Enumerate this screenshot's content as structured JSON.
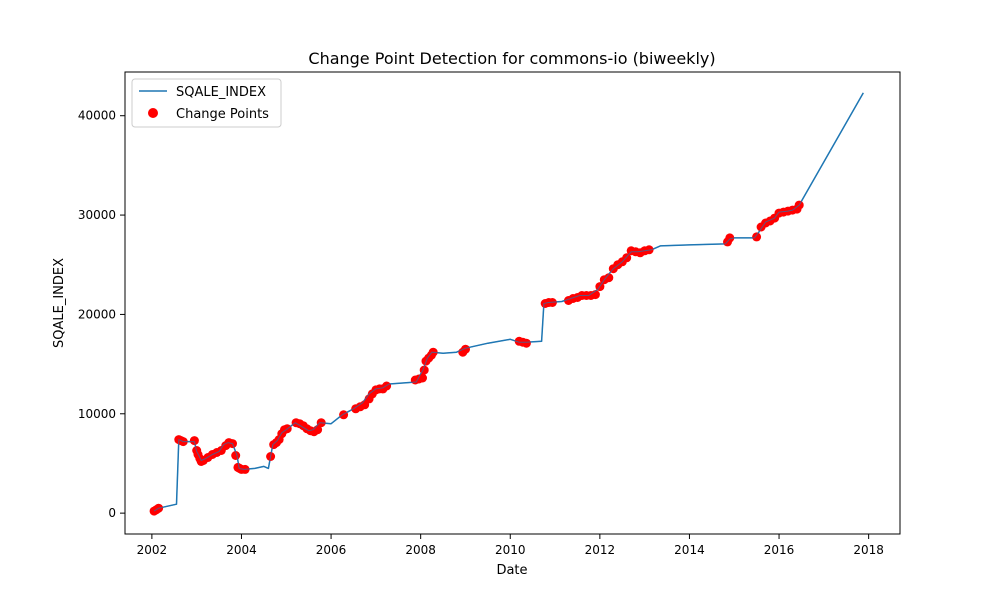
{
  "chart_data": {
    "type": "line",
    "title": "Change Point Detection for commons-io (biweekly)",
    "xlabel": "Date",
    "ylabel": "SQALE_INDEX",
    "xlim": [
      2001.4,
      2018.7
    ],
    "ylim": [
      -2100,
      44400
    ],
    "xticks": [
      2002,
      2004,
      2006,
      2008,
      2010,
      2012,
      2014,
      2016,
      2018
    ],
    "xtick_labels": [
      "2002",
      "2004",
      "2006",
      "2008",
      "2010",
      "2012",
      "2014",
      "2016",
      "2018"
    ],
    "yticks": [
      0,
      10000,
      20000,
      30000,
      40000
    ],
    "ytick_labels": [
      "0",
      "10000",
      "20000",
      "30000",
      "40000"
    ],
    "grid": false,
    "legend_position": "top-left",
    "colors": {
      "line": "#1f77b4",
      "points": "#ff0000"
    },
    "series": [
      {
        "name": "SQALE_INDEX",
        "kind": "line",
        "x": [
          2002.05,
          2002.15,
          2002.55,
          2002.6,
          2002.7,
          2002.95,
          2003.0,
          2003.05,
          2003.1,
          2003.2,
          2003.35,
          2003.5,
          2003.6,
          2003.7,
          2003.8,
          2003.9,
          2003.95,
          2004.05,
          2004.3,
          2004.5,
          2004.6,
          2004.65,
          2004.7,
          2004.8,
          2004.9,
          2005.0,
          2005.2,
          2005.35,
          2005.5,
          2005.6,
          2005.75,
          2006.0,
          2006.25,
          2006.5,
          2006.7,
          2006.85,
          2007.0,
          2007.15,
          2007.3,
          2007.9,
          2008.05,
          2008.15,
          2008.25,
          2008.5,
          2008.8,
          2009.0,
          2009.5,
          2010.0,
          2010.2,
          2010.35,
          2010.7,
          2010.75,
          2010.85,
          2011.15,
          2011.35,
          2011.55,
          2011.75,
          2011.95,
          2012.1,
          2012.3,
          2012.5,
          2012.7,
          2012.85,
          2013.0,
          2013.15,
          2013.35,
          2014.0,
          2014.8,
          2014.9,
          2015.0,
          2015.45,
          2015.55,
          2015.7,
          2015.9,
          2016.0,
          2016.2,
          2016.3,
          2016.45,
          2017.88
        ],
        "y": [
          200,
          500,
          900,
          7400,
          7200,
          7200,
          6200,
          5800,
          5300,
          5500,
          5900,
          6200,
          6900,
          7100,
          7000,
          5800,
          4500,
          4400,
          4500,
          4700,
          4500,
          5700,
          6900,
          7300,
          8100,
          8400,
          9100,
          8700,
          8300,
          8400,
          9100,
          9000,
          9900,
          10500,
          11100,
          12000,
          12500,
          12600,
          13000,
          13200,
          14400,
          15600,
          16200,
          16100,
          16200,
          16600,
          17100,
          17500,
          17200,
          17200,
          17300,
          21100,
          21200,
          21300,
          21600,
          21900,
          21900,
          22500,
          23500,
          24600,
          25300,
          26300,
          26300,
          26400,
          26500,
          26900,
          27000,
          27100,
          27600,
          27700,
          27700,
          28300,
          29300,
          29700,
          30300,
          30400,
          30500,
          31000,
          42300
        ]
      },
      {
        "name": "Change Points",
        "kind": "scatter",
        "x": [
          2002.05,
          2002.1,
          2002.15,
          2002.6,
          2002.65,
          2002.7,
          2002.95,
          2003.0,
          2003.03,
          2003.07,
          2003.1,
          2003.15,
          2003.25,
          2003.35,
          2003.45,
          2003.55,
          2003.65,
          2003.72,
          2003.8,
          2003.87,
          2003.92,
          2003.96,
          2004.0,
          2004.08,
          2004.65,
          2004.72,
          2004.78,
          2004.84,
          2004.9,
          2004.96,
          2005.02,
          2005.22,
          2005.3,
          2005.38,
          2005.46,
          2005.54,
          2005.62,
          2005.7,
          2005.78,
          2006.28,
          2006.55,
          2006.65,
          2006.75,
          2006.85,
          2006.92,
          2007.0,
          2007.08,
          2007.16,
          2007.24,
          2007.88,
          2007.96,
          2008.04,
          2008.08,
          2008.12,
          2008.18,
          2008.24,
          2008.28,
          2008.94,
          2009.0,
          2010.2,
          2010.28,
          2010.36,
          2010.78,
          2010.86,
          2010.94,
          2011.3,
          2011.4,
          2011.5,
          2011.6,
          2011.7,
          2011.8,
          2011.9,
          2012.0,
          2012.1,
          2012.2,
          2012.3,
          2012.4,
          2012.5,
          2012.6,
          2012.7,
          2012.8,
          2012.9,
          2013.0,
          2013.1,
          2014.85,
          2014.9,
          2015.5,
          2015.6,
          2015.7,
          2015.8,
          2015.9,
          2016.0,
          2016.1,
          2016.2,
          2016.3,
          2016.4,
          2016.45
        ],
        "y": [
          200,
          350,
          500,
          7400,
          7300,
          7200,
          7300,
          6300,
          5900,
          5500,
          5200,
          5300,
          5600,
          5900,
          6100,
          6300,
          6800,
          7100,
          7000,
          5800,
          4600,
          4500,
          4400,
          4400,
          5700,
          6900,
          7100,
          7400,
          8000,
          8400,
          8500,
          9100,
          9000,
          8800,
          8500,
          8300,
          8200,
          8400,
          9100,
          9900,
          10500,
          10700,
          10900,
          11500,
          12000,
          12400,
          12500,
          12500,
          12800,
          13400,
          13500,
          13600,
          14400,
          15300,
          15600,
          15900,
          16200,
          16200,
          16500,
          17300,
          17200,
          17100,
          21100,
          21200,
          21200,
          21400,
          21600,
          21700,
          21900,
          21900,
          21900,
          22000,
          22800,
          23500,
          23700,
          24600,
          25000,
          25300,
          25700,
          26400,
          26300,
          26200,
          26400,
          26500,
          27300,
          27700,
          27800,
          28800,
          29200,
          29400,
          29700,
          30200,
          30300,
          30400,
          30500,
          30600,
          31000
        ]
      }
    ]
  }
}
